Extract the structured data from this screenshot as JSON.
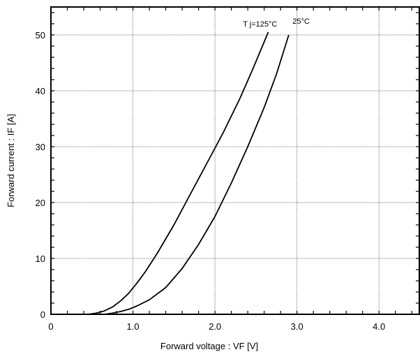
{
  "chart_data": {
    "type": "line",
    "xlabel": "Forward voltage :  VF [V]",
    "ylabel": "Forward current : IF  [A]",
    "xlim": [
      0,
      4.5
    ],
    "ylim": [
      0,
      55
    ],
    "x_ticks": [
      0,
      1,
      2,
      3,
      4
    ],
    "x_tick_labels": [
      "0",
      "1.0",
      "2.0",
      "3.0",
      "4.0"
    ],
    "y_ticks": [
      0,
      10,
      20,
      30,
      40,
      50
    ],
    "y_tick_labels": [
      "0",
      "10",
      "20",
      "30",
      "40",
      "50"
    ],
    "grid": true,
    "series": [
      {
        "name": "T j=125°C",
        "x": [
          0.45,
          0.55,
          0.65,
          0.75,
          0.85,
          0.95,
          1.05,
          1.15,
          1.3,
          1.5,
          1.7,
          1.9,
          2.1,
          2.3,
          2.45,
          2.55,
          2.65
        ],
        "y": [
          0,
          0.2,
          0.6,
          1.3,
          2.4,
          3.8,
          5.6,
          7.6,
          11.0,
          16.0,
          21.5,
          27.0,
          32.5,
          38.5,
          43.5,
          47.0,
          50.5
        ]
      },
      {
        "name": "25°C",
        "x": [
          0.65,
          0.75,
          0.85,
          0.95,
          1.05,
          1.2,
          1.4,
          1.6,
          1.8,
          2.0,
          2.2,
          2.4,
          2.6,
          2.75,
          2.9
        ],
        "y": [
          0,
          0.2,
          0.5,
          0.9,
          1.5,
          2.6,
          4.8,
          8.2,
          12.5,
          17.5,
          23.5,
          30.0,
          37.0,
          43.0,
          50.0
        ]
      }
    ],
    "annotations": [
      {
        "text": "T j=125°C",
        "x": 2.55,
        "y": 51.5
      },
      {
        "text": "25°C",
        "x": 3.05,
        "y": 52.0
      }
    ]
  }
}
